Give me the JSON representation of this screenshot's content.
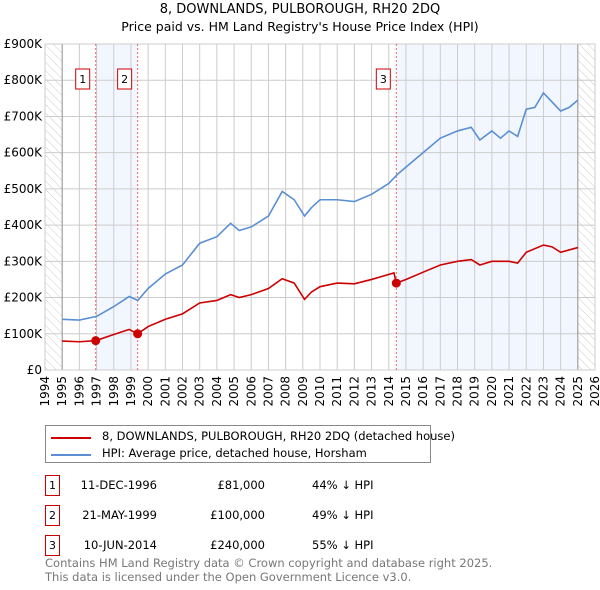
{
  "chart_data": {
    "type": "line",
    "title": "8, DOWNLANDS, PULBOROUGH, RH20 2DQ",
    "subtitle": "Price paid vs. HM Land Registry's House Price Index (HPI)",
    "xlim": [
      1994,
      2026
    ],
    "ylim": [
      0,
      900000
    ],
    "x_ticks": [
      1994,
      1995,
      1996,
      1997,
      1998,
      1999,
      2000,
      2001,
      2002,
      2003,
      2004,
      2005,
      2006,
      2007,
      2008,
      2009,
      2010,
      2011,
      2012,
      2013,
      2014,
      2015,
      2016,
      2017,
      2018,
      2019,
      2020,
      2021,
      2022,
      2023,
      2024,
      2025,
      2026
    ],
    "y_ticks": [
      {
        "v": 0,
        "label": "£0"
      },
      {
        "v": 100000,
        "label": "£100K"
      },
      {
        "v": 200000,
        "label": "£200K"
      },
      {
        "v": 300000,
        "label": "£300K"
      },
      {
        "v": 400000,
        "label": "£400K"
      },
      {
        "v": 500000,
        "label": "£500K"
      },
      {
        "v": 600000,
        "label": "£600K"
      },
      {
        "v": 700000,
        "label": "£700K"
      },
      {
        "v": 800000,
        "label": "£800K"
      },
      {
        "v": 900000,
        "label": "£900K"
      }
    ],
    "grid": true,
    "series": [
      {
        "name": "8, DOWNLANDS, PULBOROUGH, RH20 2DQ (detached house)",
        "color": "#cc0000",
        "x": [
          1995,
          1996,
          1996.95,
          1998,
          1998.9,
          1999.39,
          2000,
          2001,
          2002,
          2003,
          2004,
          2004.8,
          2005.3,
          2006,
          2007,
          2007.8,
          2008.5,
          2009.1,
          2009.5,
          2010,
          2011,
          2012,
          2013,
          2014.3,
          2014.44,
          2015,
          2016,
          2017,
          2018,
          2018.8,
          2019.3,
          2020,
          2021,
          2021.5,
          2022,
          2023,
          2023.5,
          2024,
          2025
        ],
        "y": [
          80000,
          78000,
          81000,
          98000,
          112000,
          100000,
          120000,
          140000,
          155000,
          185000,
          192000,
          208000,
          200000,
          208000,
          225000,
          252000,
          240000,
          195000,
          215000,
          230000,
          240000,
          238000,
          250000,
          268000,
          240000,
          250000,
          270000,
          290000,
          300000,
          305000,
          290000,
          300000,
          300000,
          295000,
          325000,
          345000,
          340000,
          325000,
          338000
        ]
      },
      {
        "name": "HPI: Average price, detached house, Horsham",
        "color": "#5b8fd4",
        "x": [
          1995,
          1996,
          1997,
          1998,
          1998.9,
          1999.4,
          2000,
          2001,
          2002,
          2003,
          2004,
          2004.8,
          2005.3,
          2006,
          2007,
          2007.8,
          2008.5,
          2009.1,
          2009.5,
          2010,
          2011,
          2012,
          2013,
          2014,
          2014.5,
          2015,
          2016,
          2017,
          2018,
          2018.8,
          2019.3,
          2020,
          2020.5,
          2021,
          2021.5,
          2022,
          2022.5,
          2023,
          2023.5,
          2024,
          2024.5,
          2025
        ],
        "y": [
          140000,
          138000,
          148000,
          175000,
          203000,
          192000,
          225000,
          265000,
          290000,
          350000,
          368000,
          405000,
          385000,
          395000,
          425000,
          493000,
          470000,
          425000,
          448000,
          470000,
          470000,
          465000,
          485000,
          515000,
          540000,
          560000,
          600000,
          640000,
          660000,
          670000,
          635000,
          660000,
          640000,
          660000,
          645000,
          720000,
          725000,
          765000,
          740000,
          715000,
          725000,
          745000
        ]
      }
    ],
    "sales": [
      {
        "id": "1",
        "x": 1996.95,
        "y": 81000,
        "date": "11-DEC-1996",
        "price": "£81,000",
        "hpi": "44% ↓ HPI"
      },
      {
        "id": "2",
        "x": 1999.39,
        "y": 100000,
        "date": "21-MAY-1999",
        "price": "£100,000",
        "hpi": "49% ↓ HPI"
      },
      {
        "id": "3",
        "x": 2014.44,
        "y": 240000,
        "date": "10-JUN-2014",
        "price": "£240,000",
        "hpi": "55% ↓ HPI"
      }
    ],
    "shaded": [
      [
        1996.95,
        1999.39
      ],
      [
        2014.44,
        2025
      ]
    ],
    "hatched": [
      [
        1994,
        1995
      ],
      [
        2025,
        2026
      ]
    ],
    "legend_position": "below"
  },
  "footer": [
    "Contains HM Land Registry data © Crown copyright and database right 2025.",
    "This data is licensed under the Open Government Licence v3.0."
  ]
}
